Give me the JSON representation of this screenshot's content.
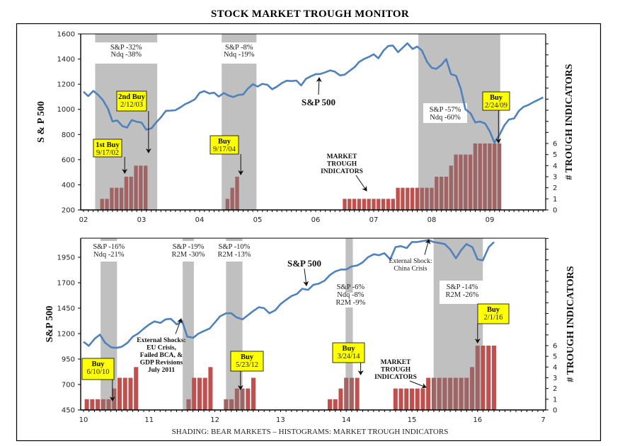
{
  "title": "STOCK MARKET TROUGH MONITOR",
  "footer": "SHADING: BEAR MARKETS – HISTOGRAMS: MARKET TROUGH INDICATORS",
  "colors": {
    "line": "#4f81bd",
    "bar": "#c0504d",
    "bar_shaded": "#a06464",
    "shade": "#c0c0c0",
    "callout": "#ffff00"
  },
  "chart_data": [
    {
      "type": "line+bar",
      "title": "",
      "ylabel": "S & P 500",
      "y2label": "# TROUGH INDICATORS",
      "ylim": [
        200,
        1600
      ],
      "yticks": [
        200,
        400,
        600,
        800,
        1000,
        1200,
        1400,
        1600
      ],
      "y2lim": [
        0,
        6
      ],
      "y2ticks": [
        0,
        1,
        2,
        3,
        4,
        5,
        6
      ],
      "xlim": [
        2002,
        2009.95
      ],
      "xticks": [
        {
          "v": 2002,
          "l": "02"
        },
        {
          "v": 2003,
          "l": "03"
        },
        {
          "v": 2004,
          "l": "04"
        },
        {
          "v": 2005,
          "l": "05"
        },
        {
          "v": 2006,
          "l": "06"
        },
        {
          "v": 2007,
          "l": "07"
        },
        {
          "v": 2008,
          "l": "08"
        },
        {
          "v": 2009,
          "l": "09"
        }
      ],
      "shading": [
        {
          "from": 2002.2,
          "to": 2003.27,
          "label": [
            "S&P -32%",
            "Ndq -38%"
          ],
          "label_pos": "top"
        },
        {
          "from": 2004.38,
          "to": 2004.98,
          "label": [
            "S&P -8%",
            "Ndq -19%"
          ],
          "label_pos": "top"
        },
        {
          "from": 2007.77,
          "to": 2009.18,
          "label": [
            "S&P -57%",
            "Ndq  -60%"
          ],
          "label_pos": "inside"
        }
      ],
      "series_line": {
        "name": "S&P 500",
        "x": [
          2002.0,
          2002.08,
          2002.17,
          2002.25,
          2002.33,
          2002.42,
          2002.5,
          2002.58,
          2002.67,
          2002.75,
          2002.83,
          2002.92,
          2003.0,
          2003.08,
          2003.17,
          2003.25,
          2003.33,
          2003.42,
          2003.5,
          2003.58,
          2003.67,
          2003.75,
          2003.83,
          2003.92,
          2004.0,
          2004.08,
          2004.17,
          2004.25,
          2004.33,
          2004.42,
          2004.5,
          2004.58,
          2004.67,
          2004.75,
          2004.83,
          2004.92,
          2005.0,
          2005.08,
          2005.17,
          2005.25,
          2005.33,
          2005.42,
          2005.5,
          2005.58,
          2005.67,
          2005.75,
          2005.83,
          2005.92,
          2006.0,
          2006.08,
          2006.17,
          2006.25,
          2006.33,
          2006.42,
          2006.5,
          2006.58,
          2006.67,
          2006.75,
          2006.83,
          2006.92,
          2007.0,
          2007.08,
          2007.17,
          2007.25,
          2007.33,
          2007.42,
          2007.5,
          2007.58,
          2007.67,
          2007.75,
          2007.83,
          2007.92,
          2008.0,
          2008.08,
          2008.17,
          2008.25,
          2008.33,
          2008.42,
          2008.5,
          2008.58,
          2008.67,
          2008.75,
          2008.83,
          2008.92,
          2009.0,
          2009.08,
          2009.17,
          2009.25,
          2009.33,
          2009.42,
          2009.5,
          2009.58,
          2009.67,
          2009.75,
          2009.83,
          2009.92
        ],
        "y": [
          1140,
          1106,
          1147,
          1116,
          1076,
          1007,
          904,
          912,
          867,
          855,
          915,
          901,
          895,
          838,
          849,
          895,
          935,
          988,
          990,
          993,
          1016,
          1041,
          1058,
          1080,
          1131,
          1145,
          1126,
          1133,
          1102,
          1130,
          1110,
          1098,
          1115,
          1118,
          1165,
          1200,
          1181,
          1203,
          1195,
          1160,
          1180,
          1210,
          1228,
          1225,
          1229,
          1190,
          1242,
          1264,
          1280,
          1281,
          1295,
          1310,
          1300,
          1270,
          1276,
          1305,
          1335,
          1378,
          1400,
          1418,
          1438,
          1406,
          1468,
          1504,
          1508,
          1455,
          1490,
          1526,
          1480,
          1500,
          1468,
          1378,
          1330,
          1322,
          1355,
          1400,
          1280,
          1267,
          1164,
          1000,
          968,
          896,
          903,
          888,
          825,
          735,
          798,
          872,
          919,
          928,
          987,
          1020,
          1036,
          1057,
          1075,
          1095
        ]
      },
      "series_bars": {
        "name": "# Trough Indicators",
        "groups": [
          {
            "start": 2002.32,
            "values": [
              1,
              1,
              2,
              2,
              2,
              3,
              3,
              4,
              4,
              4
            ]
          },
          {
            "start": 2004.48,
            "values": [
              1,
              2,
              3
            ]
          },
          {
            "start": 2006.5,
            "values": [
              1,
              1,
              1,
              1,
              1,
              1,
              1,
              1,
              1,
              1,
              1,
              2,
              2,
              2,
              2,
              2,
              2,
              2,
              2,
              3,
              3,
              3,
              4,
              5,
              5,
              5,
              5,
              6,
              6,
              6,
              6,
              6,
              6
            ]
          }
        ],
        "step": 0.0833
      },
      "callouts": [
        {
          "lines": [
            "1st Buy",
            "9/17/02"
          ],
          "date": 2002.71
        },
        {
          "lines": [
            "2nd Buy",
            "2/12/03"
          ],
          "date": 2003.12
        },
        {
          "lines": [
            "Buy",
            "9/17/04"
          ],
          "date": 2004.71
        },
        {
          "lines": [
            "Buy",
            "2/24/09"
          ],
          "date": 2009.15
        }
      ],
      "text_annotations": [
        {
          "text": "S&P 500"
        },
        {
          "text": [
            "MARKET",
            "TROUGH",
            "INDICATORS"
          ]
        }
      ]
    },
    {
      "type": "line+bar",
      "title": "",
      "ylabel": "S&P 500",
      "y2label": "# TROUGH INDICATORS",
      "ylim": [
        450,
        2200
      ],
      "yticks": [
        450,
        700,
        950,
        1200,
        1450,
        1700,
        1950
      ],
      "y2lim": [
        0,
        6
      ],
      "y2ticks": [
        0,
        1,
        2,
        3,
        4,
        5,
        6
      ],
      "xlim": [
        2010,
        2017
      ],
      "xticks": [
        {
          "v": 2010,
          "l": "10"
        },
        {
          "v": 2011,
          "l": "11"
        },
        {
          "v": 2012,
          "l": "12"
        },
        {
          "v": 2013,
          "l": "13"
        },
        {
          "v": 2014,
          "l": "14"
        },
        {
          "v": 2015,
          "l": "15"
        },
        {
          "v": 2016,
          "l": "16"
        },
        {
          "v": 2017,
          "l": "7"
        }
      ],
      "shading": [
        {
          "from": 2010.26,
          "to": 2010.51,
          "label": [
            "S&P -16%",
            "Ndq  -21%"
          ],
          "label_pos": "top"
        },
        {
          "from": 2011.51,
          "to": 2011.68,
          "label": [
            "S&P -19%",
            "R2M -30%"
          ],
          "label_pos": "top"
        },
        {
          "from": 2012.17,
          "to": 2012.42,
          "label": [
            "S&P -10%",
            "R2M -13%"
          ],
          "label_pos": "top"
        },
        {
          "from": 2013.99,
          "to": 2014.1,
          "label": [
            "S&P -6%",
            "Ndq -8%",
            "R2M -9%"
          ],
          "label_pos": "middle"
        },
        {
          "from": 2015.33,
          "to": 2016.08,
          "label": [
            "S&P -14%",
            "R2M -26%"
          ],
          "label_pos": "inside"
        }
      ],
      "series_line": {
        "name": "S&P 500",
        "x": [
          2010.0,
          2010.08,
          2010.17,
          2010.25,
          2010.33,
          2010.42,
          2010.5,
          2010.58,
          2010.67,
          2010.75,
          2010.83,
          2010.92,
          2011.0,
          2011.08,
          2011.17,
          2011.25,
          2011.33,
          2011.42,
          2011.5,
          2011.58,
          2011.67,
          2011.75,
          2011.83,
          2011.92,
          2012.0,
          2012.08,
          2012.17,
          2012.25,
          2012.33,
          2012.42,
          2012.5,
          2012.58,
          2012.67,
          2012.75,
          2012.83,
          2012.92,
          2013.0,
          2013.08,
          2013.17,
          2013.25,
          2013.33,
          2013.42,
          2013.5,
          2013.58,
          2013.67,
          2013.75,
          2013.83,
          2013.92,
          2014.0,
          2014.08,
          2014.17,
          2014.25,
          2014.33,
          2014.42,
          2014.5,
          2014.58,
          2014.67,
          2014.75,
          2014.83,
          2014.92,
          2015.0,
          2015.08,
          2015.17,
          2015.25,
          2015.33,
          2015.42,
          2015.5,
          2015.58,
          2015.67,
          2015.75,
          2015.83,
          2015.92,
          2016.0,
          2016.08,
          2016.17,
          2016.25
        ],
        "y": [
          1120,
          1080,
          1150,
          1190,
          1110,
          1065,
          1060,
          1070,
          1110,
          1170,
          1200,
          1250,
          1290,
          1320,
          1305,
          1340,
          1345,
          1290,
          1325,
          1170,
          1160,
          1200,
          1225,
          1250,
          1310,
          1370,
          1400,
          1400,
          1360,
          1340,
          1380,
          1420,
          1460,
          1450,
          1400,
          1430,
          1490,
          1530,
          1570,
          1590,
          1640,
          1630,
          1680,
          1690,
          1720,
          1775,
          1810,
          1830,
          1830,
          1860,
          1870,
          1900,
          1950,
          1980,
          1970,
          1990,
          1930,
          2050,
          2060,
          2040,
          2100,
          2100,
          2110,
          2120,
          2100,
          2090,
          2080,
          2030,
          1940,
          2020,
          2080,
          2050,
          1930,
          1920,
          2050,
          2100
        ]
      },
      "series_bars": {
        "name": "# Trough Indicators",
        "groups": [
          {
            "start": 2010.05,
            "values": [
              1,
              1,
              1,
              1,
              1,
              2,
              3,
              3,
              3,
              4
            ]
          },
          {
            "start": 2011.6,
            "values": [
              1,
              3,
              3,
              3,
              4
            ]
          },
          {
            "start": 2012.17,
            "values": [
              1,
              1,
              2,
              2,
              2,
              3
            ]
          },
          {
            "start": 2013.75,
            "values": [
              1,
              1,
              2,
              3,
              3,
              3
            ]
          },
          {
            "start": 2014.75,
            "values": [
              2,
              2,
              2,
              2,
              2,
              2,
              3,
              3,
              3,
              3,
              3,
              3,
              3,
              3,
              4,
              6,
              6,
              6,
              6
            ]
          }
        ],
        "step": 0.0833
      },
      "callouts": [
        {
          "lines": [
            "Buy",
            "6/10/10"
          ],
          "date": 2010.44
        },
        {
          "lines": [
            "Buy",
            "5/23/12"
          ],
          "date": 2012.39
        },
        {
          "lines": [
            "Buy",
            "3/24/14"
          ],
          "date": 2014.22
        },
        {
          "lines": [
            "Buy",
            "2/1/16"
          ],
          "date": 2016.0
        }
      ],
      "text_annotations": [
        {
          "text": "S&P 500"
        },
        {
          "text": [
            "External Shocks:",
            "EU Crisis,",
            "Failed BCA, &",
            "GDP Revisions",
            "July 2011"
          ]
        },
        {
          "text": [
            "External Shock:",
            "China Crisis"
          ]
        },
        {
          "text": [
            "MARKET",
            "TROUGH",
            "INDICATORS"
          ]
        }
      ]
    }
  ]
}
